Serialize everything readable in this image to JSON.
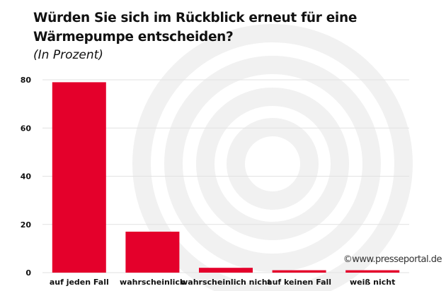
{
  "chart_data": {
    "type": "bar",
    "title": "Würden Sie sich im Rückblick erneut für eine Wärmepumpe entscheiden?",
    "subtitle": "(In Prozent)",
    "categories": [
      "auf jeden Fall",
      "wahrscheinlich",
      "wahrscheinlich nicht",
      "auf keinen Fall",
      "weiß nicht"
    ],
    "values": [
      79,
      17,
      2,
      1,
      1
    ],
    "ylim": [
      0,
      80
    ],
    "yticks": [
      0,
      20,
      40,
      60,
      80
    ],
    "grid": true,
    "bar_color": "#e4002b"
  },
  "watermark": "©www.presseportal.de"
}
